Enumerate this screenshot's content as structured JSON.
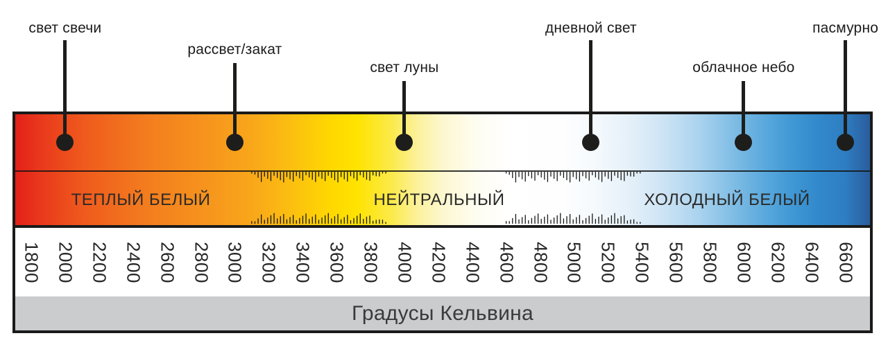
{
  "chart_data": {
    "type": "color-temperature-scale",
    "axis": {
      "label": "Градусы Кельвина",
      "min": 1800,
      "max": 6600,
      "step": 200,
      "ticks": [
        1800,
        2000,
        2200,
        2400,
        2600,
        2800,
        3000,
        3200,
        3400,
        3600,
        3800,
        4000,
        4200,
        4400,
        4600,
        4800,
        5000,
        5200,
        5400,
        5600,
        5800,
        6000,
        6200,
        6400,
        6600
      ]
    },
    "zones": [
      {
        "label": "ТЕПЛЫЙ БЕЛЫЙ",
        "range_k": [
          1800,
          3100
        ]
      },
      {
        "label": "НЕЙТРАЛЬНЫЙ",
        "range_k": [
          3900,
          4600
        ]
      },
      {
        "label": "ХОЛОДНЫЙ БЕЛЫЙ",
        "range_k": [
          5400,
          6600
        ]
      }
    ],
    "transition_bands_k": [
      [
        3100,
        3900
      ],
      [
        4600,
        5400
      ]
    ],
    "annotations": [
      {
        "label": "свет свечи",
        "kelvin": 2000,
        "tier": 1
      },
      {
        "label": "рассвет/закат",
        "kelvin": 3000,
        "tier": 2
      },
      {
        "label": "свет луны",
        "kelvin": 4000,
        "tier": 3
      },
      {
        "label": "дневной свет",
        "kelvin": 5100,
        "tier": 1
      },
      {
        "label": "облачное небо",
        "kelvin": 6000,
        "tier": 3
      },
      {
        "label": "пасмурно",
        "kelvin": 6600,
        "tier": 1
      }
    ],
    "gradient_stops": [
      {
        "pos": 0,
        "color": "#e32019"
      },
      {
        "pos": 3,
        "color": "#e9391c"
      },
      {
        "pos": 8,
        "color": "#ef5a1d"
      },
      {
        "pos": 15,
        "color": "#f37b1e"
      },
      {
        "pos": 22,
        "color": "#f6931d"
      },
      {
        "pos": 28,
        "color": "#f9a81a"
      },
      {
        "pos": 33,
        "color": "#fcc30e"
      },
      {
        "pos": 37,
        "color": "#ffd800"
      },
      {
        "pos": 40,
        "color": "#ffe300"
      },
      {
        "pos": 44,
        "color": "#fbea49"
      },
      {
        "pos": 47,
        "color": "#fcf19b"
      },
      {
        "pos": 50,
        "color": "#fdf7cf"
      },
      {
        "pos": 54,
        "color": "#fefdf2"
      },
      {
        "pos": 58,
        "color": "#ffffff"
      },
      {
        "pos": 64,
        "color": "#fefefe"
      },
      {
        "pos": 68,
        "color": "#f4f9fd"
      },
      {
        "pos": 72,
        "color": "#e4f0f9"
      },
      {
        "pos": 76,
        "color": "#cce3f4"
      },
      {
        "pos": 80,
        "color": "#aad3ee"
      },
      {
        "pos": 84,
        "color": "#7fbde5"
      },
      {
        "pos": 88,
        "color": "#57a7dc"
      },
      {
        "pos": 91,
        "color": "#3f97d4"
      },
      {
        "pos": 94,
        "color": "#3289cb"
      },
      {
        "pos": 97,
        "color": "#2e7ec2"
      },
      {
        "pos": 100,
        "color": "#2a5d9e"
      }
    ],
    "annotation_ink": "#1d1d1b"
  }
}
